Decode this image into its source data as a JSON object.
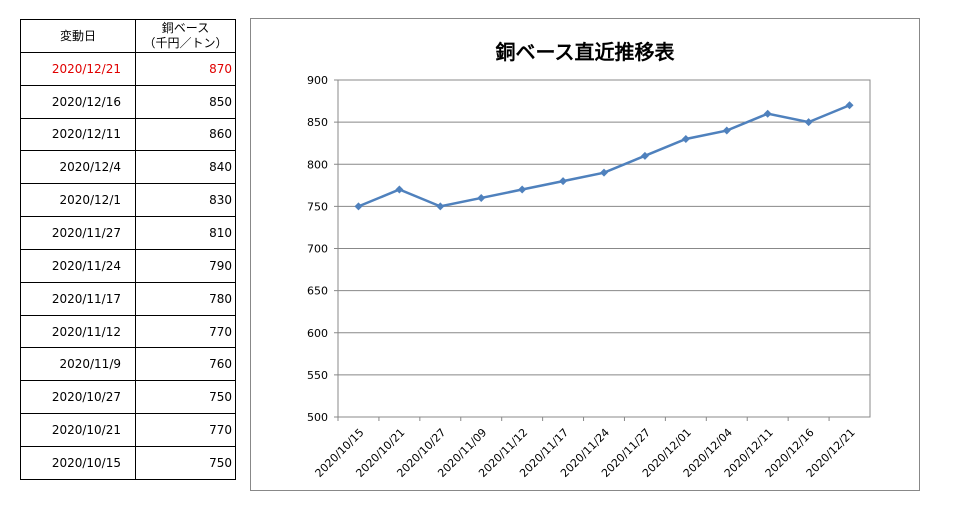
{
  "table": {
    "header_date": "変動日",
    "header_value_line1": "銅ベース",
    "header_value_line2": "（千円／トン）",
    "rows": [
      {
        "date": "2020/12/21",
        "value": "870",
        "highlight": true
      },
      {
        "date": "2020/12/16",
        "value": "850"
      },
      {
        "date": "2020/12/11",
        "value": "860"
      },
      {
        "date": "2020/12/4",
        "value": "840"
      },
      {
        "date": "2020/12/1",
        "value": "830"
      },
      {
        "date": "2020/11/27",
        "value": "810"
      },
      {
        "date": "2020/11/24",
        "value": "790"
      },
      {
        "date": "2020/11/17",
        "value": "780"
      },
      {
        "date": "2020/11/12",
        "value": "770"
      },
      {
        "date": "2020/11/9",
        "value": "760"
      },
      {
        "date": "2020/10/27",
        "value": "750"
      },
      {
        "date": "2020/10/21",
        "value": "770"
      },
      {
        "date": "2020/10/15",
        "value": "750"
      }
    ],
    "highlight_color": "#e00000"
  },
  "chart_data": {
    "type": "line",
    "title": "銅ベース直近推移表",
    "categories": [
      "2020/10/15",
      "2020/10/21",
      "2020/10/27",
      "2020/11/09",
      "2020/11/12",
      "2020/11/17",
      "2020/11/24",
      "2020/11/27",
      "2020/12/01",
      "2020/12/04",
      "2020/12/11",
      "2020/12/16",
      "2020/12/21"
    ],
    "series": [
      {
        "values": [
          750,
          770,
          750,
          760,
          770,
          780,
          790,
          810,
          830,
          840,
          860,
          850,
          870
        ],
        "color": "#4f81bd",
        "marker": "diamond"
      }
    ],
    "ylim": [
      500,
      900
    ],
    "yticks": [
      500,
      550,
      600,
      650,
      700,
      750,
      800,
      850,
      900
    ],
    "grid": true,
    "legend": "none"
  }
}
